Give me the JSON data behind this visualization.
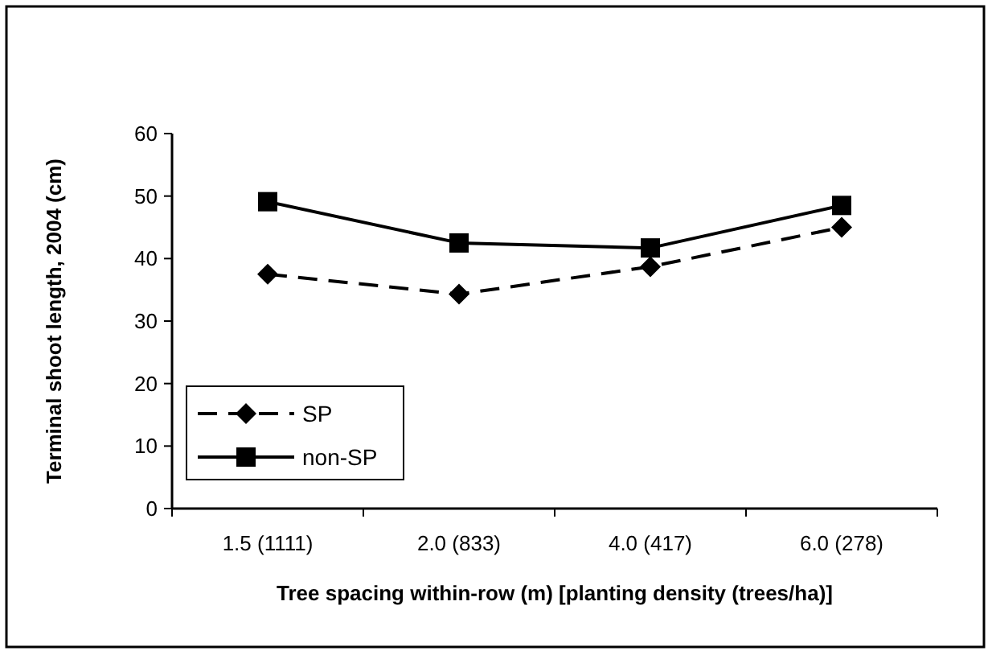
{
  "chart_data": {
    "type": "line",
    "xlabel": "Tree spacing within-row (m) [planting density (trees/ha)]",
    "ylabel": "Terminal shoot length, 2004 (cm)",
    "categories": [
      "1.5 (1111)",
      "2.0 (833)",
      "4.0 (417)",
      "6.0 (278)"
    ],
    "series": [
      {
        "name": "SP",
        "color": "#000000",
        "marker": "diamond",
        "line_style": "dashed",
        "values": [
          37.5,
          34.3,
          38.7,
          45.0
        ]
      },
      {
        "name": "non-SP",
        "color": "#000000",
        "marker": "square",
        "line_style": "solid",
        "values": [
          49.1,
          42.5,
          41.7,
          48.5
        ]
      }
    ],
    "ylim": [
      0,
      60
    ],
    "yticks": [
      0,
      10,
      20,
      30,
      40,
      50,
      60
    ],
    "grid": false,
    "legend": "bottom left"
  }
}
